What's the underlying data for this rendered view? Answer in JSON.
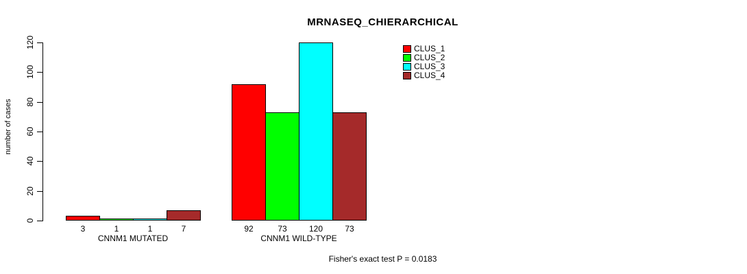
{
  "chart_data": {
    "type": "bar",
    "title": "MRNASEQ_CHIERARCHICAL",
    "xlabel": "",
    "ylabel": "number of cases",
    "ylim": [
      0,
      120
    ],
    "yticks": [
      0,
      20,
      40,
      60,
      80,
      100,
      120
    ],
    "grid": false,
    "legend_position": "top-right",
    "categories": [
      "CNNM1 MUTATED",
      "CNNM1 WILD-TYPE"
    ],
    "series": [
      {
        "name": "CLUS_1",
        "color": "#FF0000",
        "values": [
          3,
          92
        ]
      },
      {
        "name": "CLUS_2",
        "color": "#00FF00",
        "values": [
          1,
          73
        ]
      },
      {
        "name": "CLUS_3",
        "color": "#00FFFF",
        "values": [
          1,
          120
        ]
      },
      {
        "name": "CLUS_4",
        "color": "#A52A2A",
        "values": [
          7,
          73
        ]
      }
    ],
    "bar_value_labels": [
      [
        3,
        1,
        1,
        7
      ],
      [
        92,
        73,
        120,
        73
      ]
    ],
    "annotation": "Fisher's exact test P = 0.0183"
  },
  "colors": {
    "axis": "#000000",
    "background": "#FFFFFF"
  }
}
